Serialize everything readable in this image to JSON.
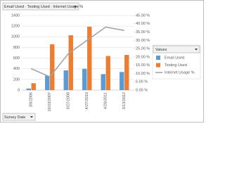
{
  "chart_data": {
    "type": "bar",
    "field_button": "Email Used · Testing Used · Internet Usage %",
    "axis_field_button": "Survey Date",
    "legend_title": "Values",
    "legend": "right",
    "grid": true,
    "categories": [
      "3/8/2006",
      "10/23/2007",
      "3/27/2008",
      "4/27/2010",
      "4/26/2011",
      "3/13/2012"
    ],
    "series": [
      {
        "name": "Email Used",
        "type": "bar",
        "color": "#5b9bd5",
        "values": [
          30,
          270,
          370,
          400,
          300,
          340
        ]
      },
      {
        "name": "Testing Used",
        "type": "bar",
        "color": "#ed7d31",
        "values": [
          130,
          860,
          1030,
          1190,
          640,
          660
        ]
      },
      {
        "name": "Internet Usage %",
        "type": "line",
        "axis": "y2",
        "color": "#a5a5a5",
        "values": [
          13,
          8,
          22,
          30,
          38,
          36
        ]
      }
    ],
    "ylim": [
      0,
      1400
    ],
    "yticks": [
      0,
      200,
      400,
      600,
      800,
      1000,
      1200,
      1400
    ],
    "y2lim": [
      0,
      45
    ],
    "y2ticks": [
      {
        "value": 0,
        "label": "0.00 %"
      },
      {
        "value": 5,
        "label": "5.00 %"
      },
      {
        "value": 10,
        "label": "10.00 %"
      },
      {
        "value": 15,
        "label": "15.00 %"
      },
      {
        "value": 20,
        "label": "20.00 %"
      },
      {
        "value": 25,
        "label": "25.00 %"
      },
      {
        "value": 30,
        "label": "30.00 %"
      },
      {
        "value": 35,
        "label": "35.00 %"
      },
      {
        "value": 40,
        "label": "40.00 %"
      },
      {
        "value": 45,
        "label": "45.00 %"
      }
    ]
  }
}
